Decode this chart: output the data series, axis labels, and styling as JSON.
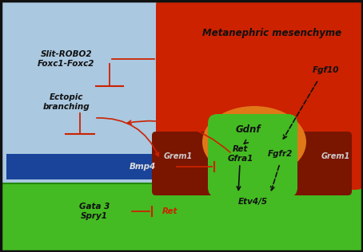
{
  "bg_color": "#aac8e0",
  "red_mm_color": "#cc2200",
  "dark_red_color": "#7a1500",
  "orange_color": "#e07818",
  "green_color": "#44bb22",
  "blue_bar_color": "#1a4499",
  "black": "#111111",
  "red_arrow": "#cc2200",
  "white_ish": "#dddddd",
  "title": "Metanephric mesenchyme",
  "labels": {
    "Slit_ROBO2": "Slit-ROBO2",
    "Foxc1_Foxc2": "Foxc1-Foxc2",
    "Ectopic_branching": "Ectopic\nbranching",
    "Bmp4": "Bmp4",
    "Gata3_Spry1": "Gata 3\nSpry1",
    "Ret_bottom": "Ret",
    "Gdnf": "Gdnf",
    "Fgf10": "Fgf10",
    "Grem1_left": "Grem1",
    "Grem1_right": "Grem1",
    "Ret_Gfra1": "Ret\nGfra1",
    "Fgfr2": "Fgfr2",
    "Etv4_5": "Etv4/5"
  }
}
